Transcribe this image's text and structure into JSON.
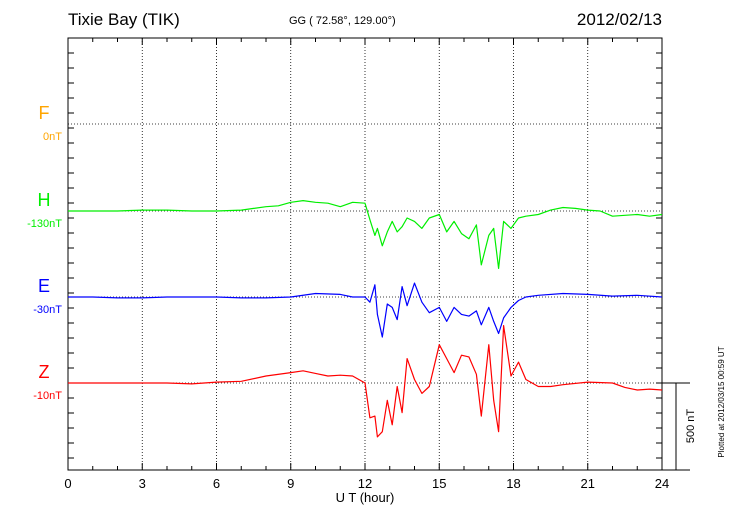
{
  "header": {
    "title": "Tixie Bay (TIK)",
    "coords": "GG ( 72.58°, 129.00°)",
    "date": "2012/02/13"
  },
  "chart_data": {
    "type": "line",
    "xlabel": "U T (hour)",
    "xlim": [
      0,
      24
    ],
    "xticks": [
      "0",
      "3",
      "6",
      "9",
      "12",
      "15",
      "18",
      "21",
      "24"
    ],
    "grid": true,
    "scale_bar": "500 nT",
    "plotted_stamp": "Plotted at 2012/03/15 00:59 UT",
    "series": [
      {
        "name": "F",
        "baseline": "0nT",
        "color": "#ffa500",
        "x": [],
        "y": []
      },
      {
        "name": "H",
        "baseline": "-130nT",
        "color": "#00ee00",
        "x": [
          0,
          1,
          2,
          3,
          4,
          5,
          6,
          7,
          7.5,
          8,
          8.5,
          9,
          9.5,
          10,
          10.5,
          11,
          11.5,
          12,
          12.2,
          12.4,
          12.5,
          12.7,
          12.9,
          13.1,
          13.3,
          13.5,
          13.7,
          14,
          14.3,
          14.6,
          15,
          15.3,
          15.6,
          15.9,
          16.2,
          16.5,
          16.7,
          17,
          17.2,
          17.4,
          17.6,
          17.9,
          18.2,
          18.5,
          19,
          19.5,
          20,
          20.5,
          21,
          21.5,
          22,
          22.5,
          23,
          23.5,
          24
        ],
        "y": [
          0,
          0,
          0,
          5,
          5,
          0,
          0,
          5,
          15,
          25,
          30,
          50,
          60,
          50,
          45,
          25,
          50,
          45,
          -50,
          -140,
          -100,
          -200,
          -120,
          -60,
          -120,
          -90,
          -40,
          -60,
          -100,
          -40,
          -20,
          -120,
          -60,
          -130,
          -160,
          -80,
          -310,
          -140,
          -100,
          -330,
          -60,
          -100,
          -40,
          -30,
          -20,
          5,
          20,
          15,
          5,
          0,
          -30,
          -25,
          -20,
          -30,
          -20
        ],
        "unit": "nT"
      },
      {
        "name": "E",
        "baseline": "-30nT",
        "color": "#0000ff",
        "x": [
          0,
          1,
          2,
          3,
          4,
          5,
          6,
          7,
          8,
          9,
          10,
          11,
          11.5,
          12,
          12.2,
          12.4,
          12.5,
          12.7,
          12.9,
          13.1,
          13.3,
          13.5,
          13.7,
          14,
          14.3,
          14.6,
          15,
          15.3,
          15.6,
          15.9,
          16.2,
          16.5,
          16.7,
          17,
          17.2,
          17.4,
          17.6,
          17.9,
          18.2,
          18.5,
          19,
          20,
          21,
          22,
          23,
          24
        ],
        "y": [
          0,
          0,
          -5,
          -5,
          0,
          0,
          0,
          -5,
          -5,
          0,
          20,
          15,
          0,
          0,
          -30,
          70,
          -100,
          -230,
          -40,
          -60,
          -130,
          60,
          -50,
          80,
          -30,
          -90,
          -60,
          -140,
          -60,
          -100,
          -110,
          -80,
          -160,
          -60,
          -140,
          -210,
          -120,
          -60,
          -20,
          0,
          10,
          20,
          15,
          5,
          10,
          0
        ],
        "unit": "nT"
      },
      {
        "name": "Z",
        "baseline": "-10nT",
        "color": "#ff0000",
        "x": [
          0,
          1,
          2,
          3,
          4,
          5,
          6,
          7,
          8,
          9,
          9.5,
          10,
          10.5,
          11,
          11.5,
          12,
          12.2,
          12.4,
          12.5,
          12.7,
          12.9,
          13.1,
          13.3,
          13.5,
          13.7,
          14,
          14.3,
          14.6,
          15,
          15.3,
          15.6,
          15.9,
          16.2,
          16.5,
          16.7,
          17,
          17.2,
          17.4,
          17.6,
          17.9,
          18.2,
          18.5,
          19,
          19.5,
          20,
          21,
          22,
          22.5,
          23,
          23.5,
          24
        ],
        "y": [
          0,
          0,
          0,
          0,
          0,
          -5,
          5,
          10,
          40,
          60,
          70,
          55,
          40,
          45,
          40,
          0,
          -200,
          -190,
          -310,
          -280,
          -100,
          -240,
          -20,
          -170,
          140,
          20,
          -60,
          -20,
          220,
          140,
          60,
          160,
          150,
          50,
          -190,
          220,
          -100,
          -280,
          330,
          40,
          120,
          20,
          -20,
          -20,
          -10,
          5,
          0,
          -25,
          -40,
          -35,
          -40
        ],
        "unit": "nT"
      }
    ]
  }
}
